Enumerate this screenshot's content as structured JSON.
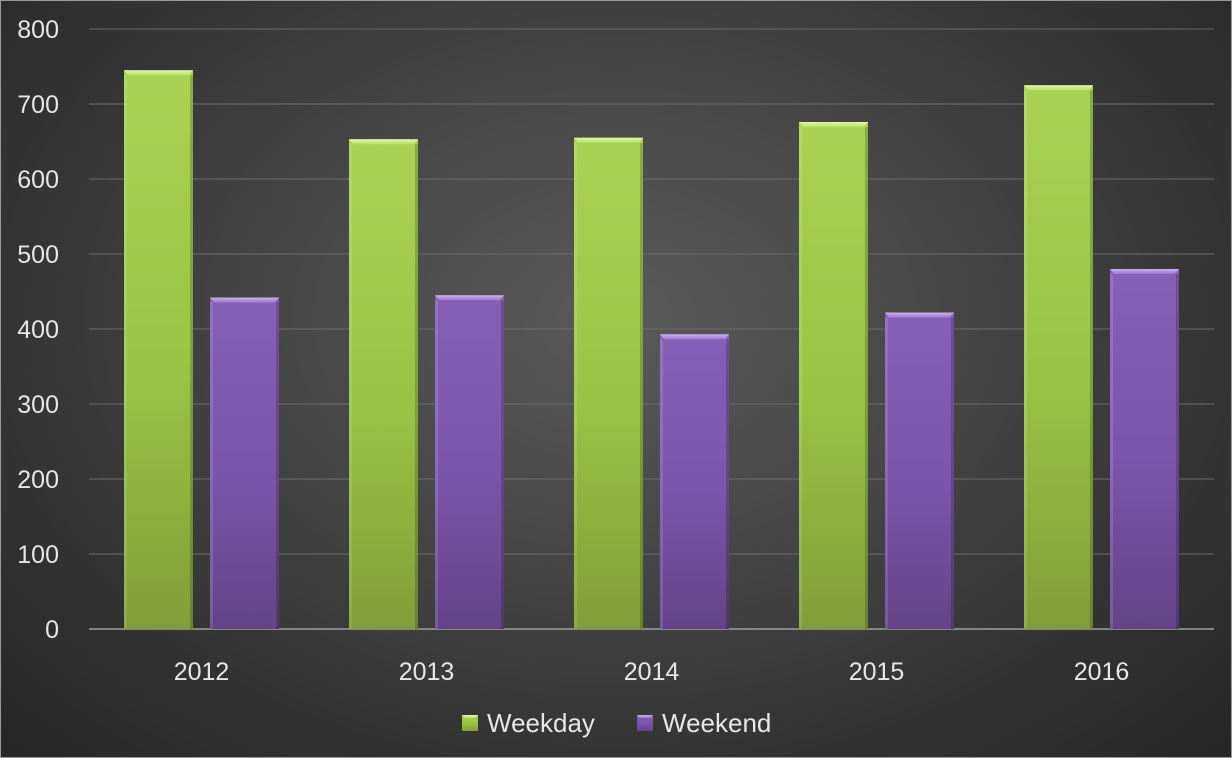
{
  "chart_data": {
    "type": "bar",
    "categories": [
      "2012",
      "2013",
      "2014",
      "2015",
      "2016"
    ],
    "series": [
      {
        "name": "Weekday",
        "values": [
          745,
          653,
          655,
          676,
          725
        ],
        "color": "#9ccc45"
      },
      {
        "name": "Weekend",
        "values": [
          442,
          445,
          393,
          422,
          480
        ],
        "color": "#7a55ad"
      }
    ],
    "title": "",
    "xlabel": "",
    "ylabel": "",
    "ylim": [
      0,
      800
    ],
    "yticks": [
      "0",
      "100",
      "200",
      "300",
      "400",
      "500",
      "600",
      "700",
      "800"
    ],
    "grid": true,
    "legend_position": "bottom",
    "background": "dark gradient"
  }
}
